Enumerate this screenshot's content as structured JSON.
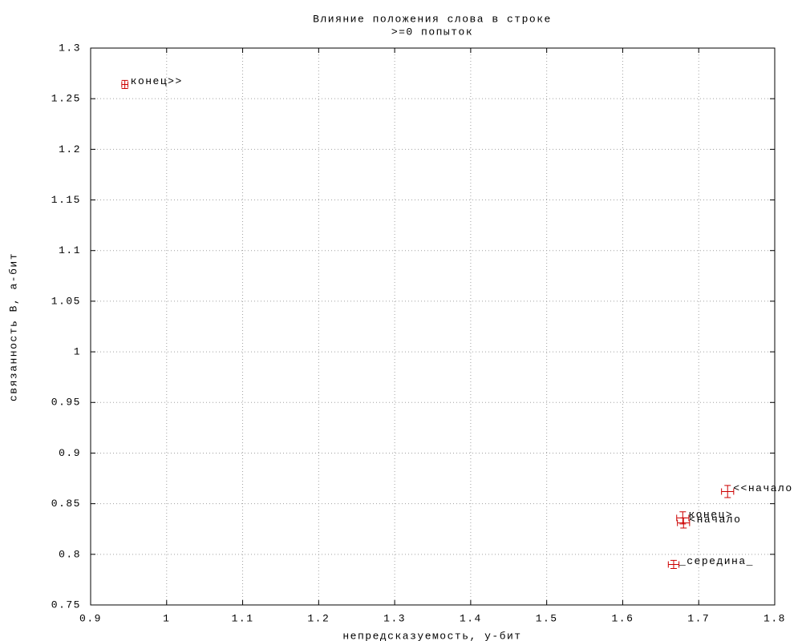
{
  "chart_data": {
    "type": "scatter",
    "title": "Влияние положения слова в строке",
    "subtitle": ">=0 попыток",
    "x_label": "непредсказуемость, y-бит",
    "y_label": "связанность B, a-бит",
    "xlim": [
      0.9,
      1.8
    ],
    "ylim": [
      0.75,
      1.3
    ],
    "xticks": [
      0.9,
      1,
      1.1,
      1.2,
      1.3,
      1.4,
      1.5,
      1.6,
      1.7,
      1.8
    ],
    "yticks": [
      0.75,
      0.8,
      0.85,
      0.9,
      0.95,
      1,
      1.05,
      1.1,
      1.15,
      1.2,
      1.25,
      1.3
    ],
    "grid": true,
    "color": "#cc0000",
    "points": [
      {
        "label": "конец>>",
        "x": 0.945,
        "y": 1.264,
        "xerr": 0.004,
        "yerr": 0.004
      },
      {
        "label": "<<начало",
        "x": 1.738,
        "y": 0.862,
        "xerr": 0.008,
        "yerr": 0.006
      },
      {
        "label": "конец>",
        "x": 1.679,
        "y": 0.836,
        "xerr": 0.008,
        "yerr": 0.006
      },
      {
        "label": "<начало",
        "x": 1.68,
        "y": 0.831,
        "xerr": 0.008,
        "yerr": 0.005
      },
      {
        "label": "_середина_",
        "x": 1.667,
        "y": 0.79,
        "xerr": 0.007,
        "yerr": 0.004
      }
    ]
  }
}
